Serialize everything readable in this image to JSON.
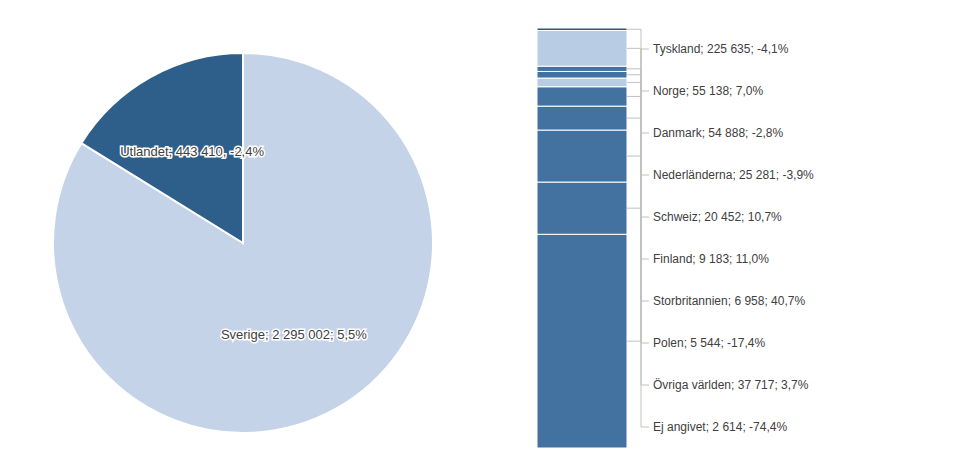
{
  "chart_data": [
    {
      "type": "pie",
      "values": [
        2295002,
        443410
      ],
      "value_labels": [
        "Sverige; 2 295 002; 5,5%",
        "Utlandet; 443 410, -2,4%"
      ],
      "colors": [
        "#c5d3e8",
        "#2e5f8a"
      ]
    },
    {
      "type": "bar",
      "stacked": true,
      "values": [
        225635,
        55138,
        54888,
        25281,
        20452,
        9183,
        6958,
        5544,
        37717,
        2614
      ],
      "value_labels": [
        "Tyskland; 225 635; -4,1%",
        "Norge; 55 138; 7,0%",
        "Danmark; 54 888; -2,8%",
        "Nederländerna; 25 281; -3,9%",
        "Schweiz; 20 452; 10,7%",
        "Finland; 9 183; 11,0%",
        "Storbritannien; 6 958; 40,7%",
        "Polen; 5 544; -17,4%",
        "Övriga världen; 37 717; 3,7%",
        "Ej angivet; 2 614; -74,4%"
      ],
      "colors": [
        "#4472a0",
        "#4472a0",
        "#4472a0",
        "#4472a0",
        "#4472a0",
        "#b8cce4",
        "#4472a0",
        "#4472a0",
        "#b8cce4",
        "#2e5070"
      ],
      "ylim": [
        0,
        443410
      ],
      "tick_labels": false
    }
  ]
}
